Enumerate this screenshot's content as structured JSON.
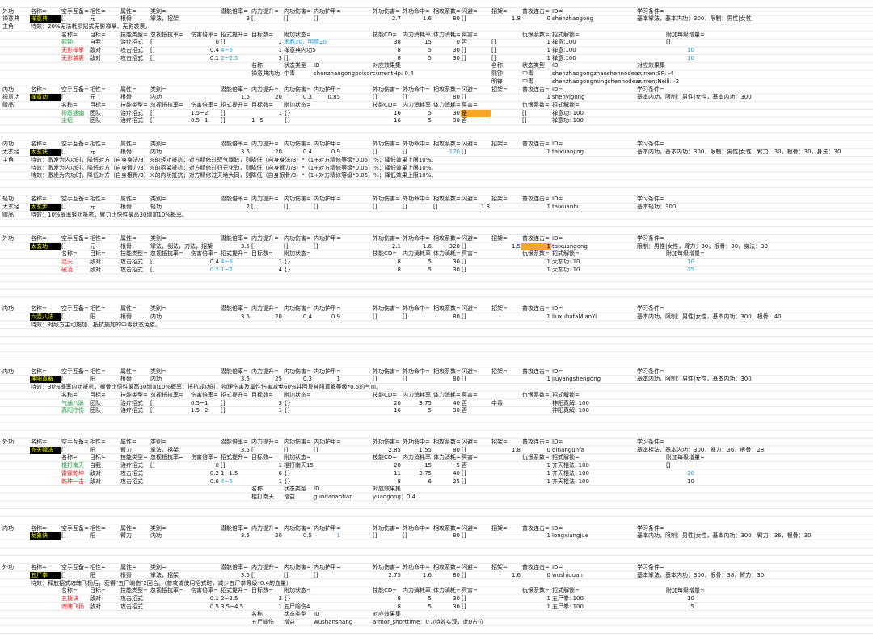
{
  "sheet": {
    "rows": [
      {
        "A": "外功",
        "B": "名称=",
        "C": "空手互备=",
        "D": "相性=",
        "E": "属性=",
        "F": "类别=",
        "H": "潜能倍率=",
        "I": "内力提升=",
        "J": "内功伤害=",
        "K": "内功护甲=",
        "M": "外功伤害=",
        "N": "外功命中=",
        "O": "相攻系数=",
        "P": "闪避=",
        "Q": "招架=",
        "R": "普攻连击=",
        "S": "ID=",
        "U": "学习条件="
      },
      {
        "A": "禅意典",
        "B": {
          "text": "禅意典",
          "fill": "#000",
          "color": "#ff0"
        },
        "C": "[]",
        "D": "元",
        "E": "根骨",
        "F": "掌法，招架",
        "H": 3,
        "I": "[]",
        "J": "[]",
        "K": "[]",
        "M": 2.7,
        "N": 1.6,
        "O": 80,
        "P": "[]",
        "Q": 1.8,
        "R": 0,
        "S": "shenzhaogong",
        "U": "基本掌法，基本内功：300，限制：男性|女性"
      },
      {
        "A": "主角",
        "B": "特效：20%无法耗损招式无影禅掌、无影袭裹。"
      },
      {
        "C": "名称=",
        "D": "目标=",
        "E": "技能类型=",
        "F": "忽视抵抗率=",
        "G": "伤害倍率=",
        "H": "招式提升=",
        "I": "目标数=",
        "J": "附加状态=",
        "M": "技能CD=",
        "N": "内力消耗率",
        "O": "体力消耗=",
        "P": "冥害=",
        "R": "仇恨系数=",
        "S": "招式解锁=",
        "V": "附加每级增量="
      },
      {
        "C": {
          "text": "熙钟",
          "color": "#1a9a3a"
        },
        "D": "自我",
        "E": "治疗招式",
        "F": "[]",
        "G": 0,
        "H": "[]",
        "I": 1,
        "J": {
          "text": "禾鼎20，明德20",
          "color": "#1e9bd7"
        },
        "M": 38,
        "N": 15,
        "O": 0,
        "P": "否",
        "Q": "[]",
        "R": 1,
        "S": "禅意:100",
        "V": "[]"
      },
      {
        "C": {
          "text": "无影禅掌",
          "color": "#e02020"
        },
        "D": "敌对",
        "E": "攻击招式",
        "F": "[]",
        "G": 0.4,
        "H": {
          "text": "4~5",
          "color": "#1e9bd7"
        },
        "I": 1,
        "J": "禅意典内功5",
        "M": 8,
        "N": 5,
        "O": 30,
        "P": "[]",
        "Q": "[]",
        "R": 1,
        "S": "禅意:100",
        "V": {
          "text": 10,
          "color": "#1e9bd7"
        }
      },
      {
        "C": {
          "text": "无影袭裹",
          "color": "#e02020"
        },
        "D": "敌对",
        "E": "攻击招式",
        "F": "[]",
        "G": 0.1,
        "H": {
          "text": "2~2.5",
          "color": "#1e9bd7"
        },
        "I": 3,
        "J": "[]",
        "M": 8,
        "N": 5,
        "O": 30,
        "P": "[]",
        "Q": "[]",
        "R": 1,
        "S": "禅意:100",
        "V": {
          "text": 10,
          "color": "#1e9bd7"
        }
      },
      {
        "I": "名称",
        "J": "状态类型",
        "K": "ID",
        "M": "对应效果集",
        "Q": "名称",
        "R": "状态类型",
        "S": "ID",
        "U": "对应效果集"
      },
      {
        "I": "禅意典内功",
        "J": "中毒",
        "K": "shenzhaogongpoison",
        "M": "currentHp: 0.4",
        "Q": "熙钟",
        "R": "中毒",
        "S": "shenzhaogongzhaoshennodear",
        "U": "currentSP: -4"
      },
      {
        "Q": "明锋",
        "R": "中毒",
        "S": "shenzhaogongmingshennodear",
        "U": "currentNeili: -2"
      },
      {
        "A": "内功",
        "B": "名称=",
        "C": "空手互备=",
        "D": "相性=",
        "E": "属性=",
        "F": "类别=",
        "H": "潜能倍率=",
        "I": "内力提升=",
        "J": "内功伤害=",
        "K": "内功护甲=",
        "M": "外功伤害=",
        "N": "外功命中=",
        "O": "相攻系数=",
        "P": "闪避=",
        "Q": "招架=",
        "R": "普攻连击=",
        "S": "ID=",
        "U": "学习条件="
      },
      {
        "A": "禅意功",
        "B": {
          "text": "禅意功",
          "fill": "#000",
          "color": "#ff0"
        },
        "C": "[]",
        "D": "元",
        "E": "根骨",
        "F": "内功",
        "H": 1.5,
        "I": 20,
        "J": 0.3,
        "K": 0.85,
        "M": "[]",
        "N": "[]",
        "O": 80,
        "P": "[]",
        "R": 1,
        "S": "shenyigong",
        "U": "基本内功，限制：男性|女性，基本内功：300"
      },
      {
        "A": "赠品",
        "C": "名称=",
        "D": "目标=",
        "E": "技能类型=",
        "F": "忽视抵抗率=",
        "G": "伤害倍率=",
        "H": "招式提升=",
        "I": "目标数=",
        "J": "附加状态=",
        "M": "技能CD=",
        "N": "内力消耗率",
        "O": "体力消耗=",
        "P": "冥害=",
        "R": "仇恨系数=",
        "S": "招式解锁="
      },
      {
        "C": {
          "text": "禅意通幽",
          "color": "#1a9a3a"
        },
        "D": "团队",
        "E": "治疗招式",
        "F": "[]",
        "G": "1.5~2",
        "H": "[]",
        "I": 1,
        "J": "{}",
        "M": 16,
        "N": 5,
        "O": 30,
        "P": {
          "text": "是",
          "fill": "#f5a623",
          "color": "#000"
        },
        "R": "[]",
        "S": "禅意功: 100"
      },
      {
        "C": {
          "text": "尘垢",
          "color": "#1a9a3a"
        },
        "D": "团队",
        "E": "治疗招式",
        "F": "[]",
        "G": "0.5~1",
        "H": "[]",
        "I": "1~5",
        "J": "{}",
        "M": 16,
        "N": 5,
        "O": 30,
        "P": "否",
        "R": "[]",
        "S": "禅意功: 100"
      },
      null,
      null,
      {
        "A": "内功",
        "B": "名称=",
        "C": "空手互备=",
        "D": "相性=",
        "E": "属性=",
        "F": "类别=",
        "H": "潜能倍率=",
        "I": "内力提升=",
        "J": "内功伤害=",
        "K": "内功护甲=",
        "M": "外功伤害=",
        "N": "外功命中=",
        "O": "相攻系数=",
        "P": "闪避=",
        "Q": "招架=",
        "R": "普攻连击=",
        "S": "ID=",
        "U": "学习条件="
      },
      {
        "A": "太玄经",
        "B": {
          "text": "太玄诀",
          "fill": "#000",
          "color": "#ff0"
        },
        "C": "[]",
        "D": "元",
        "E": "根骨",
        "F": "内功",
        "H": 3.5,
        "I": 20,
        "J": 0.4,
        "K": 0.9,
        "M": "[]",
        "N": "[]",
        "O": {
          "text": 120,
          "color": "#1e9bd7"
        },
        "P": "[]",
        "R": 1,
        "S": "taixuanjing",
        "U": "基本内功，基本内功：300，限制：男性|女性，臂力：30，根骨：30，身法：30"
      },
      {
        "A": "主角",
        "B": "特效：激发为内功时，降低对方（自身身法/3）%的轻功抵抗；对方精修过驭气飘踪，则降低（自身身法/3）*（1+对方精修等级*0.05）%；降低效果上限10%。"
      },
      {
        "B": "特效：激发为内功时，降低对方（自身臂力/3）%的招架抵抗；对方精修过归元化劲，则降低（自身臂力/3）*（1+对方精修等级*0.05）%；降低效果上限10%。"
      },
      {
        "B": "特效：激发为内功时，降低对方（自身根骨/3）%的内功抵抗；对方精修过天地大同，则降低（自身根骨/3）*（1+对方精修等级*0.05）%；降低效果上限10%。"
      },
      null,
      null,
      {
        "A": "轻功",
        "B": "名称=",
        "C": "空手互备=",
        "D": "相性=",
        "E": "属性=",
        "F": "类别=",
        "H": "潜能倍率=",
        "I": "内力提升=",
        "J": "内功伤害=",
        "K": "内功护甲=",
        "M": "外功伤害=",
        "N": "外功命中=",
        "O": "相攻系数=",
        "P": "闪避=",
        "Q": "招架=",
        "R": "普攻连击=",
        "S": "ID=",
        "U": "学习条件="
      },
      {
        "A": "太玄经",
        "B": {
          "text": "太玄步",
          "fill": "#000",
          "color": "#ff0"
        },
        "C": "[]",
        "D": "元",
        "E": "根骨",
        "F": "轻功",
        "H": 2,
        "I": "[]",
        "J": "[]",
        "K": "[]",
        "M": "[]",
        "N": "[]",
        "O": "[]",
        "P": 1.8,
        "R": 1,
        "S": "taixuanbu",
        "U": "基本轻功：300"
      },
      {
        "A": "赠品",
        "B": "特效：10%概率轻功抵抗，臂力比悟性最高30增加10%概率。"
      },
      null,
      null,
      {
        "A": "外功",
        "B": "名称=",
        "C": "空手互备=",
        "D": "相性=",
        "E": "属性=",
        "F": "类别=",
        "H": "潜能倍率=",
        "I": "内力提升=",
        "J": "内功伤害=",
        "K": "内功护甲=",
        "M": "外功伤害=",
        "N": "外功命中=",
        "O": "相攻系数=",
        "P": "闪避=",
        "Q": "招架=",
        "R": "普攻连击=",
        "S": "ID=",
        "U": "学习条件="
      },
      {
        "B": {
          "text": "太玄功",
          "fill": "#000",
          "color": "#ff0"
        },
        "C": "[]",
        "D": "元",
        "E": "根骨",
        "F": "掌法，剑法，刀法，招架",
        "H": 3.5,
        "I": "[]",
        "J": "[]",
        "K": "[]",
        "M": 2.1,
        "N": 1.6,
        "O": 320,
        "P": "[]",
        "Q": 1.5,
        "R": {
          "text": 1,
          "fill": "#f5a623",
          "color": "#000"
        },
        "S": "taixuangong",
        "U": "限制：男性|女性，臂力：30，根骨：30，身法：30"
      },
      {
        "C": "名称=",
        "D": "目标=",
        "E": "技能类型=",
        "F": "忽视抵抗率=",
        "G": "伤害倍率=",
        "H": "招式提升=",
        "I": "目标数=",
        "J": "附加状态=",
        "M": "技能CD=",
        "N": "内力消耗率",
        "O": "体力消耗=",
        "P": "冥害=",
        "R": "仇恨系数=",
        "S": "招式解锁=",
        "V": "附加每级增量="
      },
      {
        "C": {
          "text": "混天",
          "color": "#e02020"
        },
        "D": "敌对",
        "E": "攻击招式",
        "F": "[]",
        "G": 0.4,
        "H": {
          "text": "4~6",
          "color": "#1e9bd7"
        },
        "I": 1,
        "J": "{}",
        "M": 8,
        "N": 5,
        "O": 30,
        "P": "[]",
        "R": 1,
        "S": "太玄功: 10",
        "V": {
          "text": 10,
          "color": "#1e9bd7"
        }
      },
      {
        "C": {
          "text": "破凌",
          "color": "#e02020"
        },
        "D": "敌对",
        "E": "攻击招式",
        "F": "[]",
        "G": {
          "text": 0.2,
          "color": "#1e9bd7"
        },
        "H": {
          "text": "1~2",
          "color": "#1e9bd7"
        },
        "I": 4,
        "J": "{}",
        "M": 8,
        "N": 5,
        "O": 30,
        "P": "[]",
        "R": 1,
        "S": "太玄功: 10",
        "V": {
          "text": 25,
          "color": "#1e9bd7"
        }
      },
      null,
      null,
      null,
      null,
      {
        "A": "内功",
        "B": "名称=",
        "C": "空手互备=",
        "D": "相性=",
        "E": "属性=",
        "F": "类别=",
        "H": "潜能倍率=",
        "I": "内力提升=",
        "J": "内功伤害=",
        "K": "内功护甲=",
        "M": "外功伤害=",
        "N": "外功命中=",
        "O": "相攻系数=",
        "P": "闪避=",
        "Q": "招架=",
        "R": "普攻连击=",
        "S": "ID=",
        "U": "学习条件="
      },
      {
        "B": {
          "text": "六壶八法",
          "fill": "#000",
          "color": "#ff0"
        },
        "C": "[]",
        "D": "阳",
        "E": "根骨",
        "F": "内功",
        "H": 3.5,
        "I": 20,
        "J": 0.4,
        "K": 0.9,
        "M": "[]",
        "N": "[]",
        "O": 80,
        "P": "[]",
        "R": 1,
        "S": "liuxubafaMianYi",
        "U": "基本内功，限制：男性|女性，基本内功：300，根骨：40"
      },
      {
        "B": "特效：对敌方主动施加、抵抗施加的中毒状态免疫。"
      },
      null,
      null,
      null,
      null,
      null,
      {
        "A": "内功",
        "B": "名称=",
        "C": "空手互备=",
        "D": "相性=",
        "E": "属性=",
        "F": "类别=",
        "H": "潜能倍率=",
        "I": "内力提升=",
        "J": "内功伤害=",
        "K": "内功护甲=",
        "M": "外功伤害=",
        "N": "外功命中=",
        "O": "相攻系数=",
        "P": "闪避=",
        "Q": "招架=",
        "R": "普攻连击=",
        "S": "ID=",
        "U": "学习条件="
      },
      {
        "B": {
          "text": "神阳真解",
          "fill": "#000",
          "color": "#ff0"
        },
        "C": "[]",
        "D": "阳",
        "E": "根骨",
        "F": "内功",
        "H": 3.5,
        "I": 25,
        "J": 0.3,
        "K": 1,
        "M": "[]",
        "N": "[]",
        "O": 80,
        "P": "[]",
        "R": 1,
        "S": "jiuyangshengong",
        "U": "基本内功，限制：男性|女性，基本内功：300"
      },
      {
        "B": "特效：30%概率内功抵抗，根骨比悟性最高30增加10%概率；抵抗成功时，物理伤害及属性伤害减免60%并回复神阳真解等级*0.5的气血。"
      },
      {
        "C": "名称=",
        "D": "目标=",
        "E": "技能类型=",
        "F": "忽视抵抗率=",
        "G": "伤害倍率=",
        "H": "招式提升=",
        "I": "目标数=",
        "J": "附加状态=",
        "M": "技能CD=",
        "N": "内力消耗率",
        "O": "体力消耗=",
        "P": "冥害=",
        "R": "仇恨系数=",
        "S": "招式解锁="
      },
      {
        "C": {
          "text": "气通八脉",
          "color": "#1a9a3a"
        },
        "D": "团队",
        "E": "治疗招式",
        "F": "[]",
        "G": "0.5~1",
        "H": "[]",
        "I": 3,
        "J": "{}",
        "M": 20,
        "N": 3.75,
        "O": 40,
        "P": "否",
        "Q": "中毒",
        "S": "神阳真解: 100"
      },
      {
        "C": {
          "text": "真阳疗伤",
          "color": "#1a9a3a"
        },
        "D": "团队",
        "E": "治疗招式",
        "F": "[]",
        "G": "1.5~2",
        "H": "[]",
        "I": 1,
        "J": "{}",
        "M": 16,
        "N": 5,
        "O": 30,
        "P": "否",
        "S": "神阳真解: 100"
      },
      null,
      null,
      null,
      {
        "A": "外功",
        "B": "名称=",
        "C": "空手互备=",
        "D": "相性=",
        "E": "属性=",
        "F": "类别=",
        "H": "潜能倍率=",
        "I": "内力提升=",
        "J": "内功伤害=",
        "K": "内功护甲=",
        "M": "外功伤害=",
        "N": "外功命中=",
        "O": "相攻系数=",
        "P": "闪避=",
        "Q": "招架=",
        "R": "普攻连击=",
        "S": "ID=",
        "U": "学习条件="
      },
      {
        "B": {
          "text": "齐天靓法",
          "fill": "#000",
          "color": "#ff0"
        },
        "C": "[]",
        "D": "阳",
        "E": "臂力",
        "F": "掌法，招架",
        "H": 3.5,
        "I": "[]",
        "J": "[]",
        "K": "[]",
        "M": 2.85,
        "N": 1.55,
        "O": 80,
        "P": "[]",
        "Q": 1.8,
        "R": 0,
        "S": "qitiangunfa",
        "U": "基本棍法，基本内功：300，臂力：36，根骨：28"
      },
      {
        "C": "名称=",
        "D": "目标=",
        "E": "技能类型=",
        "F": "忽视抵抗率=",
        "G": "伤害倍率=",
        "H": "招式提升=",
        "I": "目标数=",
        "J": "附加状态=",
        "M": "技能CD=",
        "N": "内力消耗率",
        "O": "体力消耗=",
        "P": "冥害=",
        "R": "仇恨系数=",
        "S": "招式解锁=",
        "V": "附加每级增量="
      },
      {
        "C": {
          "text": "棍打南天",
          "color": "#1a9a3a"
        },
        "D": "自我",
        "E": "治疗招式",
        "F": "[]",
        "G": 0,
        "H": "[]",
        "I": 1,
        "J": "棍打南天15",
        "M": 28,
        "N": 15,
        "O": 5,
        "P": "否",
        "R": 1,
        "S": "齐天棍法: 100",
        "V": "[]"
      },
      {
        "C": {
          "text": "雷霆乾坤",
          "color": "#e02020"
        },
        "D": "敌对",
        "E": "攻击招式",
        "G": 0.2,
        "H": "1~1.5",
        "I": 6,
        "J": "{}",
        "M": 11,
        "N": 3.75,
        "O": 40,
        "P": "[]",
        "R": 1,
        "S": "齐天棍法: 100",
        "V": {
          "text": 20,
          "color": "#1e9bd7"
        }
      },
      {
        "C": {
          "text": "乾坤一击",
          "color": "#e02020"
        },
        "D": "敌对",
        "E": "攻击招式",
        "G": 0.6,
        "H": {
          "text": "4~5",
          "color": "#1e9bd7"
        },
        "I": 1,
        "J": "{}",
        "M": 8,
        "N": 6,
        "O": 25,
        "P": "[]",
        "R": 1,
        "S": "齐天棍法: 100",
        "V": 10
      },
      {
        "I": "名称",
        "J": "状态类型",
        "K": "ID",
        "M": "对应效果集"
      },
      {
        "I": "棍打南天",
        "J": "增益",
        "K": "gundanantian",
        "M": "yuangong：0.4"
      },
      null,
      null,
      null,
      {
        "A": "内功",
        "B": "名称=",
        "C": "空手互备=",
        "D": "相性=",
        "E": "属性=",
        "F": "类别=",
        "H": "潜能倍率=",
        "I": "内力提升=",
        "J": "内功伤害=",
        "K": "内功护甲=",
        "M": "外功伤害=",
        "N": "外功命中=",
        "O": "相攻系数=",
        "P": "闪避=",
        "Q": "招架=",
        "R": "普攻连击=",
        "S": "ID=",
        "U": "学习条件="
      },
      {
        "B": {
          "text": "龙象诀",
          "fill": "#000",
          "color": "#ff0"
        },
        "C": "[]",
        "D": "阳",
        "E": "臂力",
        "F": "内功",
        "H": 3.5,
        "I": 20,
        "J": 0.5,
        "K": {
          "text": 1,
          "color": "#1e9bd7"
        },
        "M": "[]",
        "N": "[]",
        "O": 80,
        "P": "[]",
        "R": 1,
        "S": "longxiangjue",
        "U": "基本内功，限制：男性|女性，基本内功：300，臂力：36，根骨：30"
      },
      null,
      null,
      null,
      {
        "A": "外功",
        "B": "名称=",
        "C": "空手互备=",
        "D": "相性=",
        "E": "属性=",
        "F": "类别=",
        "H": "潜能倍率=",
        "I": "内力提升=",
        "J": "内功伤害=",
        "K": "内功护甲=",
        "M": "外功伤害=",
        "N": "外功命中=",
        "O": "相攻系数=",
        "P": "闪避=",
        "Q": "招架=",
        "R": "普攻连击=",
        "S": "ID=",
        "U": "学习条件="
      },
      {
        "B": {
          "text": "五尸拳",
          "fill": "#000",
          "color": "#ff0"
        },
        "C": "[]",
        "D": "阳",
        "E": "根骨",
        "F": "掌法，招架",
        "H": 3.5,
        "I": "[]",
        "J": "[]",
        "K": "[]",
        "M": 2.75,
        "N": 1.6,
        "O": 80,
        "P": "[]",
        "Q": 1.6,
        "R": 0,
        "S": "wushiquan",
        "U": "基本掌法，基本内功：300，根骨：38，臂力：30"
      },
      {
        "B": "特效：释放招式魂魄飞扬后，获得\"五尸喻伤\"2回合。（普攻或使用招式时，减少五尸拳等级*0.4的血量）"
      },
      {
        "C": "名称=",
        "D": "目标=",
        "E": "技能类型=",
        "F": "忽视抵抗率=",
        "G": "伤害倍率=",
        "H": "招式提升=",
        "I": "目标数=",
        "J": "附加状态=",
        "M": "技能CD=",
        "N": "内力消耗率",
        "O": "体力消耗=",
        "P": "冥害=",
        "R": "仇恨系数=",
        "S": "招式解锁=",
        "V": "附加每级增量="
      },
      {
        "C": {
          "text": "五拨诀",
          "color": "#e02020"
        },
        "D": "敌对",
        "E": "攻击招式",
        "G": 0.1,
        "H": "2~2.5",
        "I": 3,
        "J": "{}",
        "M": 8,
        "N": 5,
        "O": 30,
        "P": "[]",
        "R": 1,
        "S": "五尸拳: 100",
        "V": 10
      },
      {
        "C": {
          "text": "魂魄飞扬",
          "color": "#e02020"
        },
        "D": "敌对",
        "E": "攻击招式",
        "G": 0.5,
        "H": "3.5~4.5",
        "I": 1,
        "J": "五尸喻伤4",
        "M": 8,
        "N": 5,
        "O": 30,
        "P": "[]",
        "R": 1,
        "S": "五尸拳: 100",
        "V": 5
      },
      {
        "I": "名称",
        "J": "状态类型",
        "K": "ID",
        "M": "对应效果集"
      },
      {
        "I": "五尸喻伤",
        "J": "增益",
        "K": "wushanshang",
        "M": "armor_shorttime：0 //特效实现，此0占位"
      }
    ]
  }
}
